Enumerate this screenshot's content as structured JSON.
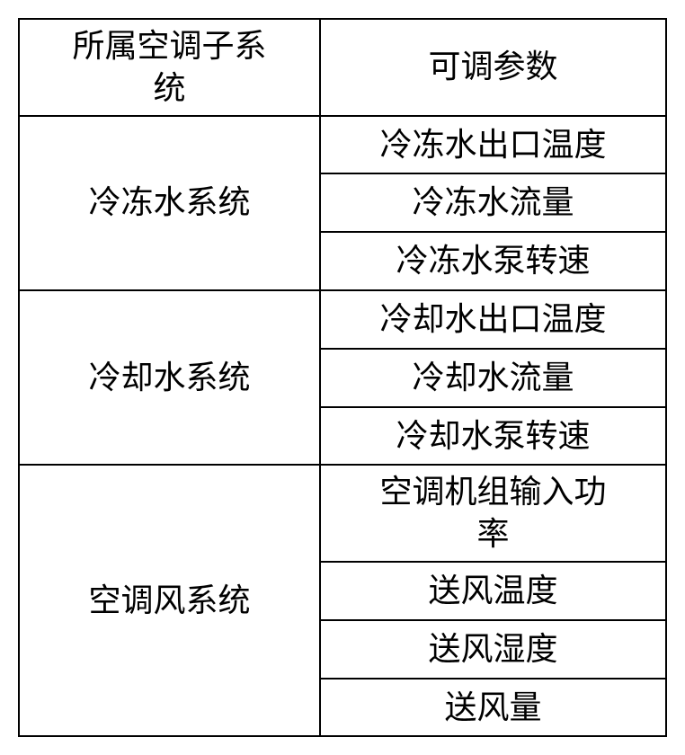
{
  "table": {
    "headers": {
      "col1": "所属空调子系\n统",
      "col2": "可调参数"
    },
    "groups": [
      {
        "system": "冷冻水系统",
        "params": [
          "冷冻水出口温度",
          "冷冻水流量",
          "冷冻水泵转速"
        ]
      },
      {
        "system": "冷却水系统",
        "params": [
          "冷却水出口温度",
          "冷却水流量",
          "冷却水泵转速"
        ]
      },
      {
        "system": "空调风系统",
        "params": [
          "空调机组输入功\n率",
          "送风温度",
          "送风湿度",
          "送风量"
        ]
      }
    ],
    "style": {
      "border_color": "#000000",
      "border_width": 2,
      "background_color": "#ffffff",
      "text_color": "#000000",
      "font_size": 36,
      "font_family": "SimSun",
      "col1_width": 340,
      "col2_width": 382
    }
  }
}
